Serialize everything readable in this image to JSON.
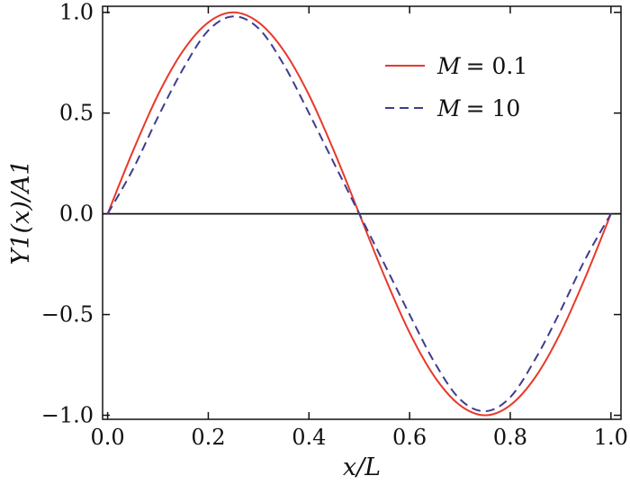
{
  "chart_data": {
    "type": "line",
    "title": "",
    "xlabel": "x/L",
    "ylabel": "Y1(x)/A1",
    "xlim": [
      -0.01,
      1.02
    ],
    "ylim": [
      -1.02,
      1.03
    ],
    "xticks": [
      0.0,
      0.2,
      0.4,
      0.6,
      0.8,
      1.0
    ],
    "xtick_labels": [
      "0.0",
      "0.2",
      "0.4",
      "0.6",
      "0.8",
      "1.0"
    ],
    "yticks": [
      -1.0,
      -0.5,
      0.0,
      0.5,
      1.0
    ],
    "ytick_labels": [
      "−1.0",
      "−0.5",
      "0.0",
      "0.5",
      "1.0"
    ],
    "grid": false,
    "legend_position": "top-right",
    "reference_line_y": 0,
    "series": [
      {
        "name": "M = 0.1",
        "legend_var": "M",
        "legend_value": "= 0.1",
        "style": "solid",
        "color": "#e8392a",
        "x": [
          0.0,
          0.05,
          0.1,
          0.15,
          0.2,
          0.25,
          0.3,
          0.35,
          0.4,
          0.45,
          0.5,
          0.55,
          0.6,
          0.65,
          0.7,
          0.75,
          0.8,
          0.85,
          0.9,
          0.95,
          1.0
        ],
        "y": [
          0.0,
          0.31,
          0.59,
          0.81,
          0.95,
          1.0,
          0.95,
          0.81,
          0.59,
          0.31,
          0.0,
          -0.31,
          -0.59,
          -0.81,
          -0.95,
          -1.0,
          -0.95,
          -0.81,
          -0.59,
          -0.31,
          0.0
        ]
      },
      {
        "name": "M = 10",
        "legend_var": "M",
        "legend_value": "= 10",
        "style": "dashed",
        "color": "#3d3d8f",
        "x": [
          0.0,
          0.05,
          0.1,
          0.15,
          0.2,
          0.25,
          0.3,
          0.35,
          0.4,
          0.45,
          0.5,
          0.55,
          0.6,
          0.65,
          0.7,
          0.75,
          0.8,
          0.85,
          0.9,
          0.95,
          1.0
        ],
        "y": [
          0.0,
          0.22,
          0.48,
          0.72,
          0.91,
          0.98,
          0.92,
          0.74,
          0.5,
          0.25,
          0.0,
          -0.25,
          -0.5,
          -0.74,
          -0.92,
          -0.98,
          -0.91,
          -0.72,
          -0.48,
          -0.22,
          0.0
        ]
      }
    ]
  }
}
